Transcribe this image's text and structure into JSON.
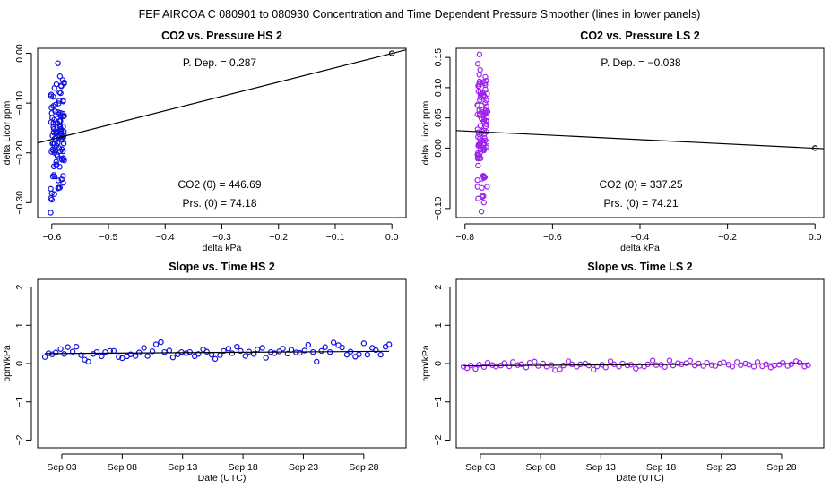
{
  "page_title": "FEF   AIRCOA C   080901 to 080930   Concentration and Time Dependent Pressure Smoother (lines in lower panels)",
  "colors": {
    "hs": "#1010e0",
    "ls": "#a020f0",
    "axis": "#000000",
    "fit": "#000000"
  },
  "chart_data": [
    {
      "id": "hs-pressure",
      "type": "scatter",
      "title": "CO2 vs. Pressure HS 2",
      "xlabel": "delta kPa",
      "ylabel": "delta Licor ppm",
      "xlim": [
        -0.625,
        0.025
      ],
      "ylim": [
        -0.33,
        0.01
      ],
      "xticks": [
        -0.6,
        -0.5,
        -0.4,
        -0.3,
        -0.2,
        -0.1,
        0.0
      ],
      "xtick_labels": [
        "−0.6",
        "−0.5",
        "−0.4",
        "−0.3",
        "−0.2",
        "−0.1",
        "0.0"
      ],
      "yticks": [
        0.0,
        -0.1,
        -0.2,
        -0.3
      ],
      "ytick_labels": [
        "0.00",
        "−0.10",
        "−0.20",
        "−0.30"
      ],
      "series_color": "hs",
      "cluster": {
        "x_center": -0.59,
        "x_spread": 0.012,
        "y_min": -0.32,
        "y_max": -0.02,
        "y_mode": -0.17,
        "count": 110
      },
      "reference_point": {
        "x": 0.0,
        "y": 0.0
      },
      "fit_line": {
        "x": [
          -0.625,
          0.025
        ],
        "y": [
          -0.18,
          0.007
        ]
      },
      "annotations": {
        "pdep": "P. Dep. =  0.287",
        "co2_0": "CO2 (0) =  446.69",
        "prs_0": "Prs. (0) =  74.18"
      }
    },
    {
      "id": "ls-pressure",
      "type": "scatter",
      "title": "CO2 vs. Pressure LS 2",
      "xlabel": "delta kPa",
      "ylabel": "delta Licor ppm",
      "xlim": [
        -0.82,
        0.02
      ],
      "ylim": [
        -0.115,
        0.165
      ],
      "xticks": [
        -0.8,
        -0.6,
        -0.4,
        -0.2,
        0.0
      ],
      "xtick_labels": [
        "−0.8",
        "−0.6",
        "−0.4",
        "−0.2",
        "0.0"
      ],
      "yticks": [
        0.15,
        0.1,
        0.05,
        0.0,
        -0.1
      ],
      "ytick_labels": [
        "0.15",
        "0.10",
        "0.05",
        "0.00",
        "−0.10"
      ],
      "series_color": "ls",
      "cluster": {
        "x_center": -0.76,
        "x_spread": 0.012,
        "y_min": -0.105,
        "y_max": 0.155,
        "y_mode": 0.02,
        "count": 110
      },
      "reference_point": {
        "x": 0.0,
        "y": 0.0
      },
      "fit_line": {
        "x": [
          -0.82,
          0.02
        ],
        "y": [
          0.029,
          -0.001
        ]
      },
      "annotations": {
        "pdep": "P. Dep. =  −0.038",
        "co2_0": "CO2 (0) =  337.25",
        "prs_0": "Prs. (0) =  74.21"
      }
    },
    {
      "id": "hs-slope",
      "type": "scatter",
      "title": "Slope vs. Time HS 2",
      "xlabel": "Date (UTC)",
      "ylabel": "ppm/kPa",
      "xlim": [
        0,
        30.5
      ],
      "ylim": [
        -2.2,
        2.2
      ],
      "xticks": [
        2,
        7,
        12,
        17,
        22,
        27
      ],
      "xtick_labels": [
        "Sep 03",
        "Sep 08",
        "Sep 13",
        "Sep 18",
        "Sep 23",
        "Sep 28"
      ],
      "yticks": [
        -2,
        -1,
        0,
        1,
        2
      ],
      "ytick_labels": [
        "−2",
        "−1",
        "0",
        "1",
        "2"
      ],
      "series_color": "hs",
      "points": [
        [
          0.6,
          0.17
        ],
        [
          0.9,
          0.27
        ],
        [
          1.2,
          0.24
        ],
        [
          1.5,
          0.29
        ],
        [
          1.9,
          0.38
        ],
        [
          2.2,
          0.25
        ],
        [
          2.5,
          0.43
        ],
        [
          2.9,
          0.31
        ],
        [
          3.2,
          0.44
        ],
        [
          3.6,
          0.22
        ],
        [
          3.9,
          0.1
        ],
        [
          4.2,
          0.05
        ],
        [
          4.6,
          0.25
        ],
        [
          4.9,
          0.3
        ],
        [
          5.3,
          0.19
        ],
        [
          5.6,
          0.3
        ],
        [
          6.0,
          0.33
        ],
        [
          6.3,
          0.33
        ],
        [
          6.7,
          0.17
        ],
        [
          7.0,
          0.14
        ],
        [
          7.4,
          0.19
        ],
        [
          7.7,
          0.24
        ],
        [
          8.1,
          0.2
        ],
        [
          8.4,
          0.29
        ],
        [
          8.8,
          0.41
        ],
        [
          9.1,
          0.2
        ],
        [
          9.5,
          0.32
        ],
        [
          9.8,
          0.5
        ],
        [
          10.2,
          0.56
        ],
        [
          10.5,
          0.3
        ],
        [
          10.9,
          0.34
        ],
        [
          11.2,
          0.16
        ],
        [
          11.6,
          0.24
        ],
        [
          11.9,
          0.3
        ],
        [
          12.3,
          0.27
        ],
        [
          12.6,
          0.3
        ],
        [
          13.0,
          0.19
        ],
        [
          13.3,
          0.25
        ],
        [
          13.7,
          0.37
        ],
        [
          14.0,
          0.31
        ],
        [
          14.4,
          0.23
        ],
        [
          14.7,
          0.12
        ],
        [
          15.1,
          0.22
        ],
        [
          15.4,
          0.33
        ],
        [
          15.8,
          0.39
        ],
        [
          16.1,
          0.27
        ],
        [
          16.5,
          0.44
        ],
        [
          16.8,
          0.33
        ],
        [
          17.2,
          0.2
        ],
        [
          17.5,
          0.31
        ],
        [
          17.9,
          0.25
        ],
        [
          18.2,
          0.37
        ],
        [
          18.6,
          0.41
        ],
        [
          18.9,
          0.15
        ],
        [
          19.3,
          0.3
        ],
        [
          19.6,
          0.27
        ],
        [
          20.0,
          0.32
        ],
        [
          20.3,
          0.39
        ],
        [
          20.7,
          0.26
        ],
        [
          21.0,
          0.36
        ],
        [
          21.4,
          0.29
        ],
        [
          21.7,
          0.28
        ],
        [
          22.1,
          0.34
        ],
        [
          22.4,
          0.49
        ],
        [
          22.8,
          0.3
        ],
        [
          23.1,
          0.05
        ],
        [
          23.5,
          0.33
        ],
        [
          23.8,
          0.43
        ],
        [
          24.2,
          0.3
        ],
        [
          24.5,
          0.55
        ],
        [
          24.9,
          0.48
        ],
        [
          25.2,
          0.42
        ],
        [
          25.6,
          0.23
        ],
        [
          25.9,
          0.31
        ],
        [
          26.3,
          0.18
        ],
        [
          26.6,
          0.24
        ],
        [
          27.0,
          0.53
        ],
        [
          27.3,
          0.23
        ],
        [
          27.7,
          0.41
        ],
        [
          28.0,
          0.35
        ],
        [
          28.4,
          0.23
        ],
        [
          28.8,
          0.44
        ],
        [
          29.1,
          0.5
        ]
      ],
      "fit_line": {
        "x": [
          0.6,
          29.1
        ],
        "y": [
          0.26,
          0.32
        ]
      }
    },
    {
      "id": "ls-slope",
      "type": "scatter",
      "title": "Slope vs. Time LS 2",
      "xlabel": "Date (UTC)",
      "ylabel": "ppm/kPa",
      "xlim": [
        0,
        30.5
      ],
      "ylim": [
        -2.2,
        2.2
      ],
      "xticks": [
        2,
        7,
        12,
        17,
        22,
        27
      ],
      "xtick_labels": [
        "Sep 03",
        "Sep 08",
        "Sep 13",
        "Sep 18",
        "Sep 23",
        "Sep 28"
      ],
      "yticks": [
        -2,
        -1,
        0,
        1,
        2
      ],
      "ytick_labels": [
        "−2",
        "−1",
        "0",
        "1",
        "2"
      ],
      "series_color": "ls",
      "points": [
        [
          0.6,
          -0.08
        ],
        [
          0.9,
          -0.12
        ],
        [
          1.2,
          -0.05
        ],
        [
          1.6,
          -0.14
        ],
        [
          1.9,
          -0.03
        ],
        [
          2.3,
          -0.09
        ],
        [
          2.6,
          0.02
        ],
        [
          3.0,
          -0.04
        ],
        [
          3.3,
          -0.08
        ],
        [
          3.7,
          -0.05
        ],
        [
          4.0,
          0.01
        ],
        [
          4.4,
          -0.07
        ],
        [
          4.7,
          0.04
        ],
        [
          5.1,
          -0.04
        ],
        [
          5.4,
          -0.02
        ],
        [
          5.8,
          -0.1
        ],
        [
          6.1,
          0.02
        ],
        [
          6.5,
          0.05
        ],
        [
          6.8,
          -0.06
        ],
        [
          7.2,
          0.0
        ],
        [
          7.5,
          -0.08
        ],
        [
          7.9,
          -0.04
        ],
        [
          8.2,
          -0.17
        ],
        [
          8.6,
          -0.15
        ],
        [
          8.9,
          -0.05
        ],
        [
          9.3,
          0.06
        ],
        [
          9.6,
          -0.02
        ],
        [
          10.0,
          -0.08
        ],
        [
          10.3,
          -0.02
        ],
        [
          10.7,
          0.0
        ],
        [
          11.0,
          -0.05
        ],
        [
          11.4,
          -0.16
        ],
        [
          11.7,
          -0.07
        ],
        [
          12.1,
          -0.03
        ],
        [
          12.4,
          -0.1
        ],
        [
          12.8,
          0.06
        ],
        [
          13.1,
          -0.02
        ],
        [
          13.5,
          -0.08
        ],
        [
          13.8,
          0.0
        ],
        [
          14.2,
          -0.05
        ],
        [
          14.5,
          -0.03
        ],
        [
          14.9,
          -0.13
        ],
        [
          15.2,
          -0.06
        ],
        [
          15.6,
          -0.08
        ],
        [
          15.9,
          -0.02
        ],
        [
          16.3,
          0.08
        ],
        [
          16.6,
          -0.04
        ],
        [
          17.0,
          -0.03
        ],
        [
          17.3,
          -0.09
        ],
        [
          17.7,
          0.08
        ],
        [
          18.0,
          -0.05
        ],
        [
          18.4,
          0.01
        ],
        [
          18.7,
          -0.02
        ],
        [
          19.1,
          0.01
        ],
        [
          19.4,
          0.07
        ],
        [
          19.8,
          -0.05
        ],
        [
          20.1,
          0.0
        ],
        [
          20.5,
          -0.06
        ],
        [
          20.8,
          0.02
        ],
        [
          21.2,
          -0.04
        ],
        [
          21.5,
          -0.06
        ],
        [
          21.9,
          0.0
        ],
        [
          22.2,
          0.03
        ],
        [
          22.6,
          -0.03
        ],
        [
          22.9,
          -0.08
        ],
        [
          23.3,
          0.04
        ],
        [
          23.6,
          -0.04
        ],
        [
          24.0,
          0.0
        ],
        [
          24.3,
          -0.03
        ],
        [
          24.7,
          -0.08
        ],
        [
          25.0,
          0.04
        ],
        [
          25.4,
          -0.07
        ],
        [
          25.7,
          -0.02
        ],
        [
          26.1,
          -0.1
        ],
        [
          26.4,
          -0.05
        ],
        [
          26.8,
          -0.03
        ],
        [
          27.1,
          0.02
        ],
        [
          27.5,
          -0.06
        ],
        [
          27.8,
          -0.02
        ],
        [
          28.2,
          0.06
        ],
        [
          28.5,
          0.02
        ],
        [
          28.9,
          -0.08
        ],
        [
          29.2,
          -0.04
        ]
      ],
      "fit_line": {
        "x": [
          0.6,
          29.2
        ],
        "y": [
          -0.06,
          0.0
        ]
      }
    }
  ]
}
